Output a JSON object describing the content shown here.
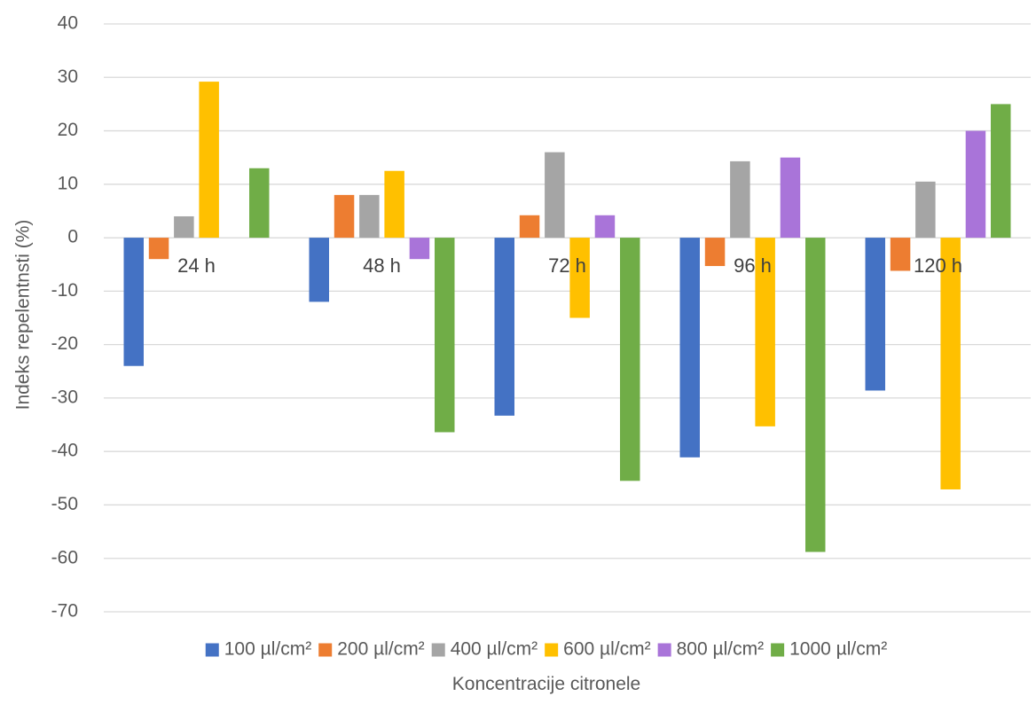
{
  "chart_data": {
    "type": "bar",
    "title": "",
    "xlabel": "Koncentracije citronele",
    "ylabel": "Indeks repelentnsti (%)",
    "ylim": [
      -70,
      40
    ],
    "yticks": [
      40,
      30,
      20,
      10,
      0,
      -10,
      -20,
      -30,
      -40,
      -50,
      -60,
      -70
    ],
    "grid": true,
    "legend_position": "bottom",
    "categories": [
      "24 h",
      "48 h",
      "72 h",
      "96 h",
      "120 h"
    ],
    "series": [
      {
        "name": "100 µl/cm²",
        "color": "#4472C4",
        "values": [
          -24,
          -12,
          -33.3,
          -41.1,
          -28.6
        ]
      },
      {
        "name": "200 µl/cm²",
        "color": "#ED7D31",
        "values": [
          -4,
          8,
          4.2,
          -5.3,
          -6.2
        ]
      },
      {
        "name": "400 µl/cm²",
        "color": "#A5A5A5",
        "values": [
          4,
          8,
          16,
          14.3,
          10.5
        ]
      },
      {
        "name": "600 µl/cm²",
        "color": "#FFC000",
        "values": [
          29.2,
          12.5,
          -15,
          -35.3,
          -47.1
        ]
      },
      {
        "name": "800 µl/cm²",
        "color": "#A974D9",
        "values": [
          0,
          -4,
          4.2,
          15,
          20
        ]
      },
      {
        "name": "1000 µl/cm²",
        "color": "#70AD47",
        "values": [
          13,
          -36.4,
          -45.5,
          -58.8,
          25
        ]
      }
    ]
  }
}
